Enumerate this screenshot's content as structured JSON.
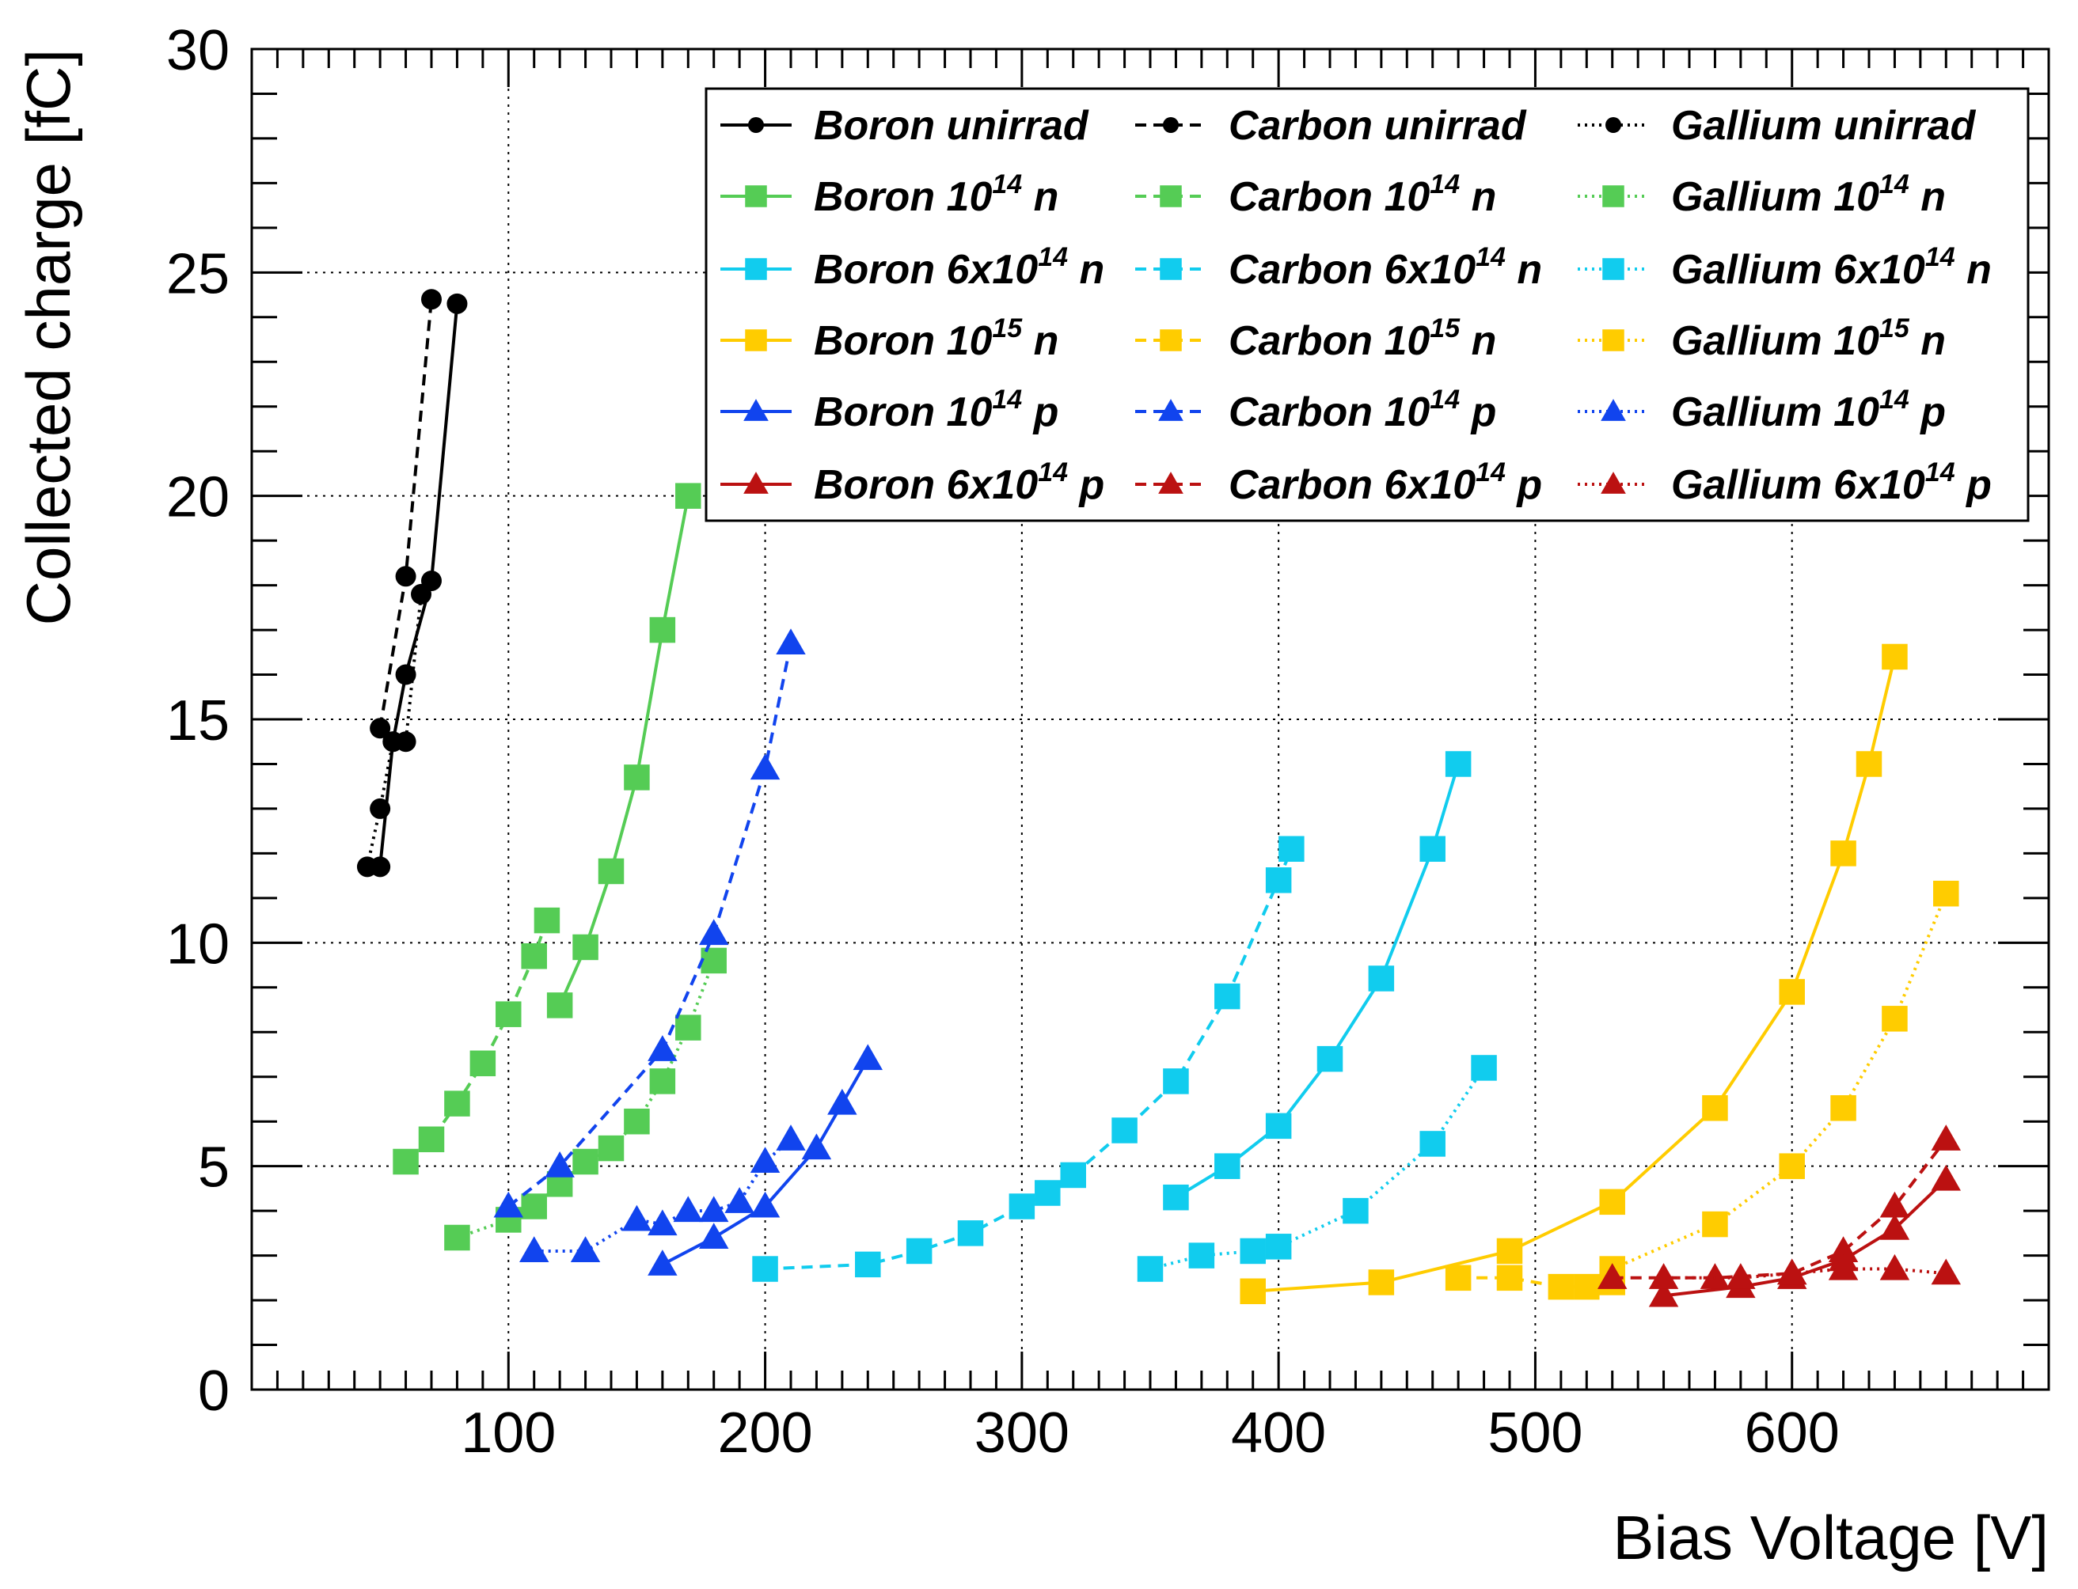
{
  "chart_data": {
    "type": "line",
    "xlabel": "Bias Voltage [V]",
    "ylabel": "Collected charge [fC]",
    "xlim": [
      0,
      700
    ],
    "ylim": [
      0,
      30
    ],
    "x_ticks": [
      100,
      200,
      300,
      400,
      500,
      600
    ],
    "y_ticks": [
      0,
      5,
      10,
      15,
      20,
      25,
      30
    ],
    "grid": true,
    "legend_position": "top-right",
    "colors": {
      "unirrad": "#000000",
      "n1e14": "#55cc55",
      "n6e14": "#11ccee",
      "n1e15": "#ffcc00",
      "p1e14": "#1144ee",
      "p6e14": "#bb1111"
    },
    "legend": [
      {
        "name": "Boron unirrad",
        "base": "Boron",
        "mant": "unirrad",
        "exp": "",
        "tail": "",
        "style": "solid",
        "marker": "circle",
        "color": "#000000"
      },
      {
        "name": "Carbon unirrad",
        "base": "Carbon",
        "mant": "unirrad",
        "exp": "",
        "tail": "",
        "style": "dashed",
        "marker": "circle",
        "color": "#000000"
      },
      {
        "name": "Gallium unirrad",
        "base": "Gallium",
        "mant": "unirrad",
        "exp": "",
        "tail": "",
        "style": "dotted",
        "marker": "circle",
        "color": "#000000"
      },
      {
        "name": "Boron 10^14 n",
        "base": "Boron",
        "mant": "10",
        "exp": "14",
        "tail": "n",
        "style": "solid",
        "marker": "square",
        "color": "#55cc55"
      },
      {
        "name": "Carbon 10^14 n",
        "base": "Carbon",
        "mant": "10",
        "exp": "14",
        "tail": "n",
        "style": "dashed",
        "marker": "square",
        "color": "#55cc55"
      },
      {
        "name": "Gallium 10^14 n",
        "base": "Gallium",
        "mant": "10",
        "exp": "14",
        "tail": "n",
        "style": "dotted",
        "marker": "square",
        "color": "#55cc55"
      },
      {
        "name": "Boron 6x10^14 n",
        "base": "Boron",
        "mant": "6x10",
        "exp": "14",
        "tail": "n",
        "style": "solid",
        "marker": "square",
        "color": "#11ccee"
      },
      {
        "name": "Carbon 6x10^14 n",
        "base": "Carbon",
        "mant": "6x10",
        "exp": "14",
        "tail": "n",
        "style": "dashed",
        "marker": "square",
        "color": "#11ccee"
      },
      {
        "name": "Gallium 6x10^14 n",
        "base": "Gallium",
        "mant": "6x10",
        "exp": "14",
        "tail": "n",
        "style": "dotted",
        "marker": "square",
        "color": "#11ccee"
      },
      {
        "name": "Boron 10^15 n",
        "base": "Boron",
        "mant": "10",
        "exp": "15",
        "tail": "n",
        "style": "solid",
        "marker": "square",
        "color": "#ffcc00"
      },
      {
        "name": "Carbon 10^15 n",
        "base": "Carbon",
        "mant": "10",
        "exp": "15",
        "tail": "n",
        "style": "dashed",
        "marker": "square",
        "color": "#ffcc00"
      },
      {
        "name": "Gallium 10^15 n",
        "base": "Gallium",
        "mant": "10",
        "exp": "15",
        "tail": "n",
        "style": "dotted",
        "marker": "square",
        "color": "#ffcc00"
      },
      {
        "name": "Boron 10^14 p",
        "base": "Boron",
        "mant": "10",
        "exp": "14",
        "tail": "p",
        "style": "solid",
        "marker": "triangle",
        "color": "#1144ee"
      },
      {
        "name": "Carbon 10^14 p",
        "base": "Carbon",
        "mant": "10",
        "exp": "14",
        "tail": "p",
        "style": "dashed",
        "marker": "triangle",
        "color": "#1144ee"
      },
      {
        "name": "Gallium 10^14 p",
        "base": "Gallium",
        "mant": "10",
        "exp": "14",
        "tail": "p",
        "style": "dotted",
        "marker": "triangle",
        "color": "#1144ee"
      },
      {
        "name": "Boron 6x10^14 p",
        "base": "Boron",
        "mant": "6x10",
        "exp": "14",
        "tail": "p",
        "style": "solid",
        "marker": "triangle",
        "color": "#bb1111"
      },
      {
        "name": "Carbon 6x10^14 p",
        "base": "Carbon",
        "mant": "6x10",
        "exp": "14",
        "tail": "p",
        "style": "dashed",
        "marker": "triangle",
        "color": "#bb1111"
      },
      {
        "name": "Gallium 6x10^14 p",
        "base": "Gallium",
        "mant": "6x10",
        "exp": "14",
        "tail": "p",
        "style": "dotted",
        "marker": "triangle",
        "color": "#bb1111"
      }
    ],
    "series": [
      {
        "name": "Boron unirrad",
        "style": "solid",
        "marker": "circle",
        "color": "#000000",
        "x": [
          50,
          55,
          60,
          70,
          80
        ],
        "y": [
          11.7,
          14.5,
          16.0,
          18.1,
          24.3
        ]
      },
      {
        "name": "Carbon unirrad",
        "style": "dashed",
        "marker": "circle",
        "color": "#000000",
        "x": [
          50,
          60,
          70
        ],
        "y": [
          14.8,
          18.2,
          24.4
        ]
      },
      {
        "name": "Gallium unirrad",
        "style": "dotted",
        "marker": "circle",
        "color": "#000000",
        "x": [
          45,
          50,
          55,
          60,
          66
        ],
        "y": [
          11.7,
          13.0,
          14.5,
          14.5,
          17.8
        ]
      },
      {
        "name": "Boron 10^14 n",
        "style": "solid",
        "marker": "square",
        "color": "#55cc55",
        "x": [
          120,
          130,
          140,
          150,
          160,
          170
        ],
        "y": [
          8.6,
          9.9,
          11.6,
          13.7,
          17.0,
          20.0
        ]
      },
      {
        "name": "Carbon 10^14 n",
        "style": "dashed",
        "marker": "square",
        "color": "#55cc55",
        "x": [
          60,
          70,
          80,
          90,
          100,
          110,
          115
        ],
        "y": [
          5.1,
          5.6,
          6.4,
          7.3,
          8.4,
          9.7,
          10.5
        ]
      },
      {
        "name": "Gallium 10^14 n",
        "style": "dotted",
        "marker": "square",
        "color": "#55cc55",
        "x": [
          80,
          100,
          110,
          120,
          130,
          140,
          150,
          160,
          170,
          180
        ],
        "y": [
          3.4,
          3.8,
          4.1,
          4.6,
          5.1,
          5.4,
          6.0,
          6.9,
          8.1,
          9.6
        ]
      },
      {
        "name": "Boron 6x10^14 n",
        "style": "solid",
        "marker": "square",
        "color": "#11ccee",
        "x": [
          360,
          380,
          400,
          420,
          440,
          460,
          470
        ],
        "y": [
          4.3,
          5.0,
          5.9,
          7.4,
          9.2,
          12.1,
          14.0
        ]
      },
      {
        "name": "Carbon 6x10^14 n",
        "style": "dashed",
        "marker": "square",
        "color": "#11ccee",
        "x": [
          200,
          240,
          260,
          280,
          300,
          310,
          320,
          340,
          360,
          380,
          400,
          405
        ],
        "y": [
          2.7,
          2.8,
          3.1,
          3.5,
          4.1,
          4.4,
          4.8,
          5.8,
          6.9,
          8.8,
          11.4,
          12.1
        ]
      },
      {
        "name": "Gallium 6x10^14 n",
        "style": "dotted",
        "marker": "square",
        "color": "#11ccee",
        "x": [
          350,
          370,
          390,
          400,
          430,
          460,
          480
        ],
        "y": [
          2.7,
          3.0,
          3.1,
          3.2,
          4.0,
          5.5,
          7.2
        ]
      },
      {
        "name": "Boron 10^15 n",
        "style": "solid",
        "marker": "square",
        "color": "#ffcc00",
        "x": [
          390,
          440,
          490,
          530,
          570,
          600,
          620,
          630,
          640
        ],
        "y": [
          2.2,
          2.4,
          3.1,
          4.2,
          6.3,
          8.9,
          12.0,
          14.0,
          16.4
        ]
      },
      {
        "name": "Carbon 10^15 n",
        "style": "dashed",
        "marker": "square",
        "color": "#ffcc00",
        "x": [
          470,
          490,
          510,
          520,
          530
        ],
        "y": [
          2.5,
          2.5,
          2.3,
          2.3,
          2.4
        ]
      },
      {
        "name": "Gallium 10^15 n",
        "style": "dotted",
        "marker": "square",
        "color": "#ffcc00",
        "x": [
          530,
          570,
          600,
          620,
          640,
          660
        ],
        "y": [
          2.7,
          3.7,
          5.0,
          6.3,
          8.3,
          11.1
        ]
      },
      {
        "name": "Boron 10^14 p",
        "style": "solid",
        "marker": "triangle",
        "color": "#1144ee",
        "x": [
          160,
          180,
          200,
          220,
          230,
          240
        ],
        "y": [
          2.8,
          3.4,
          4.1,
          5.4,
          6.4,
          7.4
        ]
      },
      {
        "name": "Carbon 10^14 p",
        "style": "dashed",
        "marker": "triangle",
        "color": "#1144ee",
        "x": [
          100,
          120,
          160,
          180,
          200,
          210
        ],
        "y": [
          4.1,
          5.0,
          7.6,
          10.2,
          13.9,
          16.7
        ]
      },
      {
        "name": "Gallium 10^14 p",
        "style": "dotted",
        "marker": "triangle",
        "color": "#1144ee",
        "x": [
          110,
          130,
          150,
          160,
          170,
          180,
          190,
          200,
          210
        ],
        "y": [
          3.1,
          3.1,
          3.8,
          3.7,
          4.0,
          4.0,
          4.2,
          5.1,
          5.6
        ]
      },
      {
        "name": "Boron 6x10^14 p",
        "style": "solid",
        "marker": "triangle",
        "color": "#bb1111",
        "x": [
          550,
          580,
          600,
          620,
          640,
          660
        ],
        "y": [
          2.1,
          2.3,
          2.5,
          2.9,
          3.6,
          4.7
        ]
      },
      {
        "name": "Carbon 6x10^14 p",
        "style": "dashed",
        "marker": "triangle",
        "color": "#bb1111",
        "x": [
          530,
          570,
          600,
          620,
          640,
          660
        ],
        "y": [
          2.5,
          2.5,
          2.6,
          3.1,
          4.1,
          5.6
        ]
      },
      {
        "name": "Gallium 6x10^14 p",
        "style": "dotted",
        "marker": "triangle",
        "color": "#bb1111",
        "x": [
          550,
          580,
          600,
          620,
          640,
          660
        ],
        "y": [
          2.5,
          2.5,
          2.6,
          2.7,
          2.7,
          2.6
        ]
      }
    ]
  }
}
